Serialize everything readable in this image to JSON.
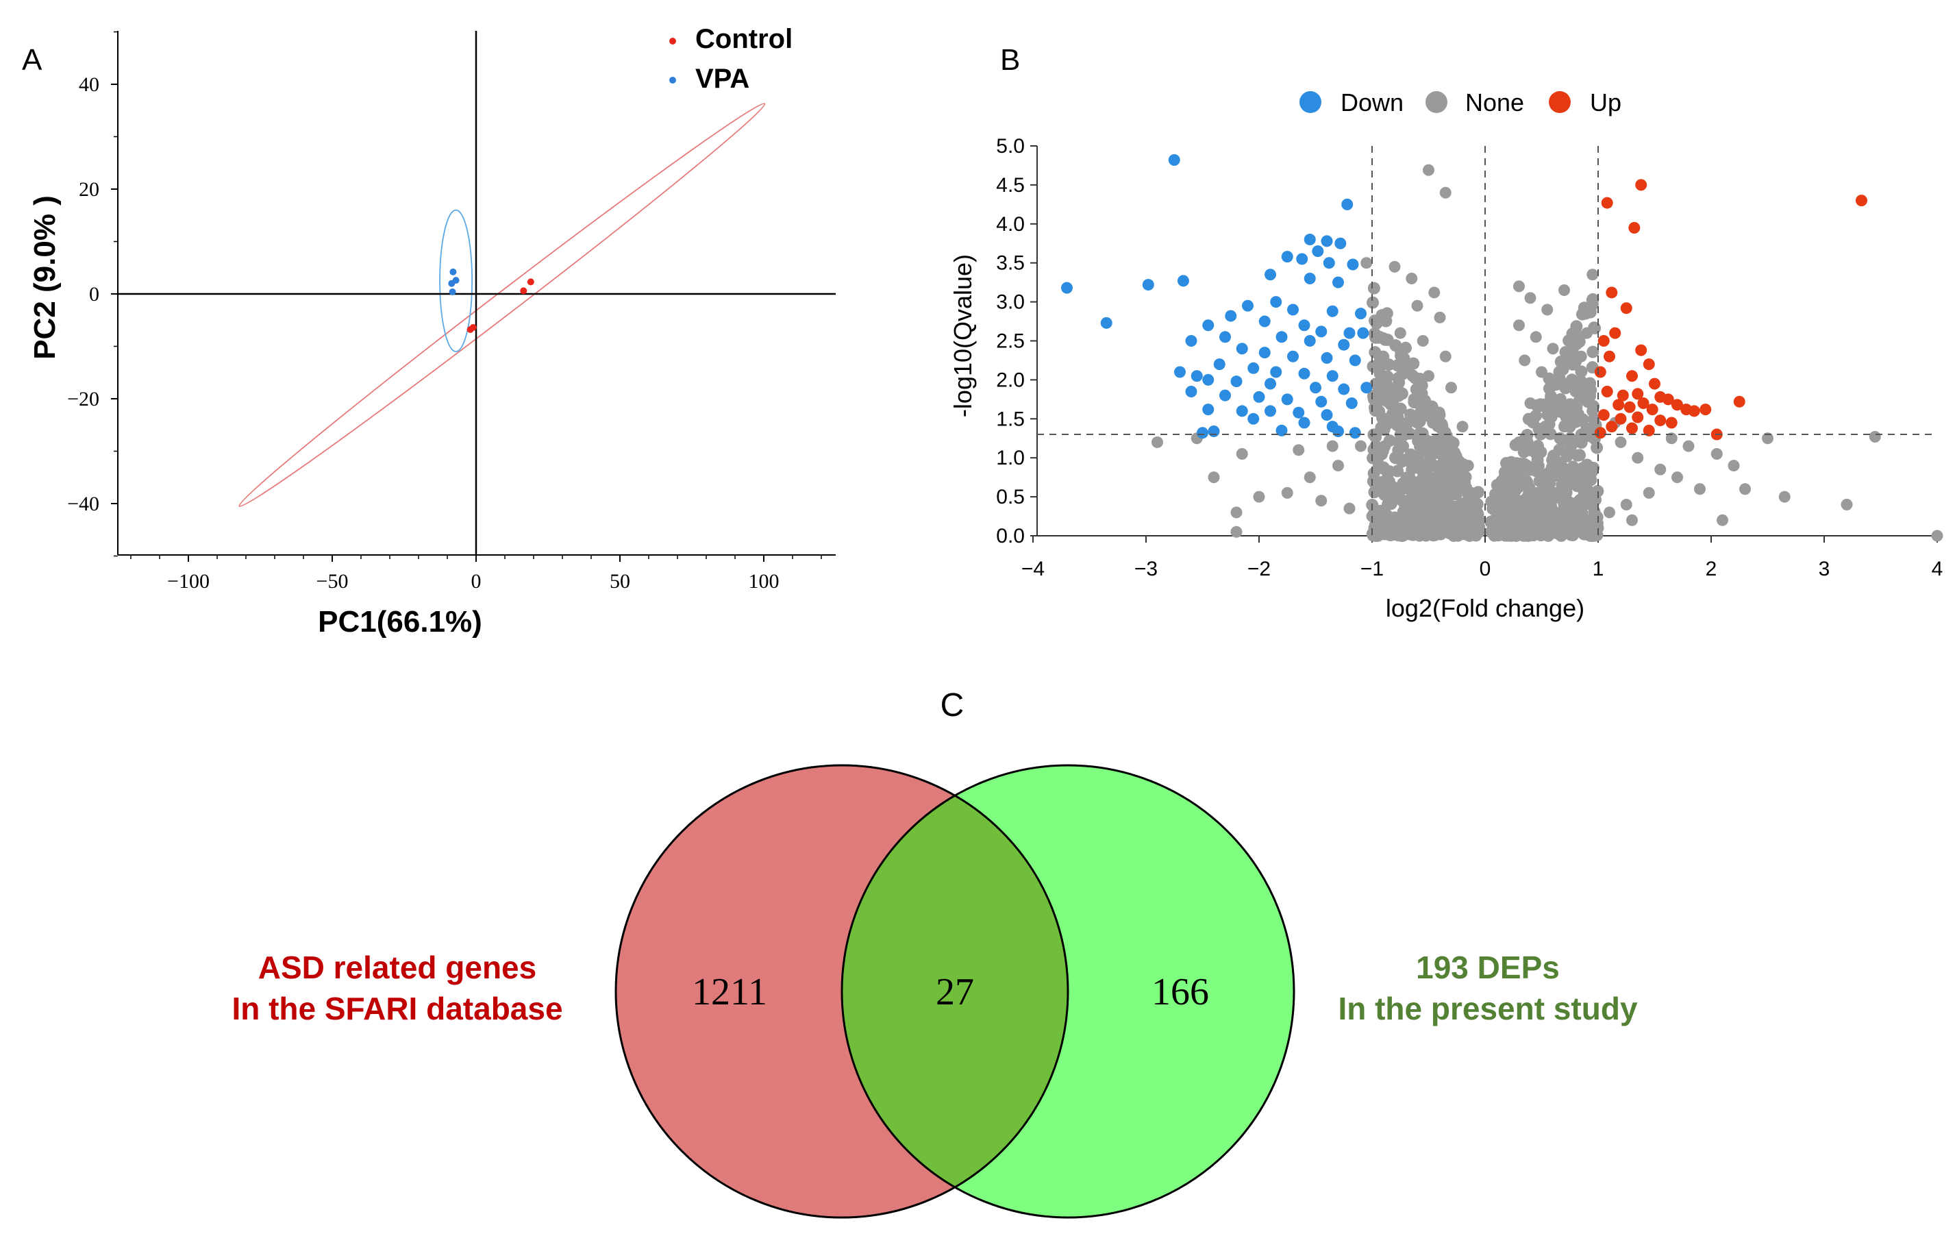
{
  "colors": {
    "control": "#e8251b",
    "vpa": "#2f7fd8",
    "down": "#2b8ce0",
    "none": "#9a9a9a",
    "up": "#e53a12",
    "venn_left": "#e07b7b",
    "venn_right": "#7fff7f",
    "venn_overlap": "#70be3c",
    "venn_left_label": "#c00000",
    "venn_right_label": "#548235"
  },
  "panels": {
    "a": "A",
    "b": "B",
    "c": "C"
  },
  "chart_data": [
    {
      "type": "scatter",
      "panel": "A",
      "title": "",
      "xlabel": "PC1(66.1%)",
      "ylabel": "PC2 (9.0% )",
      "xlim": [
        -125,
        125
      ],
      "ylim": [
        -50,
        50
      ],
      "xticks": [
        -100,
        -50,
        0,
        50,
        100
      ],
      "yticks": [
        -40,
        -20,
        0,
        20,
        40
      ],
      "xtick_labels": [
        "−100",
        "−50",
        "0",
        "50",
        "100"
      ],
      "ytick_labels": [
        "−40",
        "−20",
        "0",
        "20",
        "40"
      ],
      "legend": [
        "Control",
        "VPA"
      ],
      "legend_position": "top-right",
      "series": [
        {
          "name": "Control",
          "x": [
            16.5,
            19,
            -2,
            -1
          ],
          "y": [
            0.6,
            2.3,
            -6.8,
            -6.4
          ],
          "ellipse": {
            "cx": 9,
            "cy": -2.1,
            "rx": 107,
            "ry": 4.3,
            "angle_deg": 21.4
          }
        },
        {
          "name": "VPA",
          "x": [
            -8,
            -7,
            -8.2,
            -8.5
          ],
          "y": [
            4.2,
            2.6,
            0.4,
            2.0
          ],
          "ellipse": {
            "cx": -7,
            "cy": 2.5,
            "rx": 5.6,
            "ry": 13.5,
            "angle_deg": 0
          }
        }
      ]
    },
    {
      "type": "scatter",
      "panel": "B",
      "title": "",
      "xlabel": "log2(Fold change)",
      "ylabel": "-log10(Qvalue)",
      "xlim": [
        -4,
        4
      ],
      "ylim": [
        0,
        5
      ],
      "xticks": [
        -4,
        -3,
        -2,
        -1,
        0,
        1,
        2,
        3,
        4
      ],
      "yticks": [
        0,
        0.5,
        1,
        1.5,
        2,
        2.5,
        3,
        3.5,
        4,
        4.5,
        5
      ],
      "xtick_labels": [
        "−4",
        "−3",
        "−2",
        "−1",
        "0",
        "1",
        "2",
        "3",
        "4"
      ],
      "ytick_labels": [
        "0.0",
        "0.5",
        "1.0",
        "1.5",
        "2.0",
        "2.5",
        "3.0",
        "3.5",
        "4.0",
        "4.5",
        "5.0"
      ],
      "thresholds": {
        "x": [
          -1,
          0,
          1
        ],
        "y": 1.3
      },
      "legend": [
        "Down",
        "None",
        "Up"
      ],
      "legend_position": "top",
      "series": [
        {
          "name": "Down",
          "points": [
            [
              -2.75,
              4.82
            ],
            [
              -3.7,
              3.18
            ],
            [
              -3.35,
              2.73
            ],
            [
              -2.98,
              3.22
            ],
            [
              -2.67,
              3.27
            ],
            [
              -1.22,
              4.25
            ],
            [
              -1.55,
              3.8
            ],
            [
              -1.4,
              3.78
            ],
            [
              -1.28,
              3.75
            ],
            [
              -1.48,
              3.65
            ],
            [
              -1.75,
              3.58
            ],
            [
              -1.62,
              3.55
            ],
            [
              -1.38,
              3.5
            ],
            [
              -1.17,
              3.48
            ],
            [
              -1.9,
              3.35
            ],
            [
              -1.55,
              3.3
            ],
            [
              -1.3,
              3.25
            ],
            [
              -1.85,
              3.0
            ],
            [
              -2.1,
              2.95
            ],
            [
              -1.7,
              2.9
            ],
            [
              -1.35,
              2.88
            ],
            [
              -1.1,
              2.85
            ],
            [
              -2.25,
              2.82
            ],
            [
              -1.95,
              2.75
            ],
            [
              -1.6,
              2.7
            ],
            [
              -1.45,
              2.62
            ],
            [
              -1.2,
              2.6
            ],
            [
              -2.45,
              2.7
            ],
            [
              -2.6,
              2.5
            ],
            [
              -2.3,
              2.55
            ],
            [
              -1.8,
              2.55
            ],
            [
              -1.55,
              2.5
            ],
            [
              -1.25,
              2.45
            ],
            [
              -2.15,
              2.4
            ],
            [
              -1.95,
              2.35
            ],
            [
              -1.7,
              2.3
            ],
            [
              -1.4,
              2.28
            ],
            [
              -1.15,
              2.25
            ],
            [
              -2.35,
              2.2
            ],
            [
              -2.05,
              2.15
            ],
            [
              -1.85,
              2.1
            ],
            [
              -1.6,
              2.08
            ],
            [
              -1.35,
              2.05
            ],
            [
              -2.55,
              2.05
            ],
            [
              -2.7,
              2.1
            ],
            [
              -2.45,
              2.0
            ],
            [
              -2.2,
              1.98
            ],
            [
              -1.9,
              1.95
            ],
            [
              -1.5,
              1.9
            ],
            [
              -1.25,
              1.88
            ],
            [
              -2.6,
              1.85
            ],
            [
              -2.3,
              1.8
            ],
            [
              -2.0,
              1.78
            ],
            [
              -1.75,
              1.75
            ],
            [
              -1.45,
              1.72
            ],
            [
              -1.18,
              1.7
            ],
            [
              -2.45,
              1.62
            ],
            [
              -2.15,
              1.6
            ],
            [
              -1.9,
              1.6
            ],
            [
              -1.65,
              1.58
            ],
            [
              -1.4,
              1.55
            ],
            [
              -2.05,
              1.5
            ],
            [
              -1.6,
              1.45
            ],
            [
              -1.35,
              1.4
            ],
            [
              -2.5,
              1.32
            ],
            [
              -2.4,
              1.34
            ],
            [
              -1.8,
              1.35
            ],
            [
              -1.3,
              1.34
            ],
            [
              -1.15,
              1.32
            ],
            [
              -1.05,
              1.9
            ],
            [
              -1.08,
              2.6
            ]
          ]
        },
        {
          "name": "None",
          "points": [
            [
              -0.5,
              4.69
            ],
            [
              -0.35,
              4.4
            ],
            [
              -1.05,
              3.5
            ],
            [
              -0.8,
              3.45
            ],
            [
              -0.65,
              3.3
            ],
            [
              -0.45,
              3.12
            ],
            [
              -0.6,
              2.95
            ],
            [
              -0.4,
              2.8
            ],
            [
              -0.75,
              2.6
            ],
            [
              -0.55,
              2.5
            ],
            [
              -0.35,
              2.3
            ],
            [
              -0.7,
              2.2
            ],
            [
              -0.5,
              2.05
            ],
            [
              -0.3,
              1.9
            ],
            [
              -0.85,
              1.8
            ],
            [
              -0.6,
              1.7
            ],
            [
              -0.4,
              1.55
            ],
            [
              -0.2,
              1.4
            ],
            [
              -0.75,
              1.3
            ],
            [
              -0.5,
              1.2
            ],
            [
              -0.3,
              1.05
            ],
            [
              -0.15,
              0.9
            ],
            [
              -0.65,
              0.85
            ],
            [
              -0.45,
              0.7
            ],
            [
              -0.25,
              0.55
            ],
            [
              -0.1,
              0.4
            ],
            [
              -0.55,
              0.35
            ],
            [
              -0.35,
              0.2
            ],
            [
              -0.15,
              0.1
            ],
            [
              -0.05,
              0.05
            ],
            [
              -0.9,
              0.6
            ],
            [
              -1.3,
              0.9
            ],
            [
              -1.55,
              0.75
            ],
            [
              -1.75,
              0.55
            ],
            [
              -2.0,
              0.5
            ],
            [
              -2.2,
              0.3
            ],
            [
              -1.45,
              0.45
            ],
            [
              -1.2,
              0.35
            ],
            [
              -1.0,
              0.25
            ],
            [
              -2.4,
              0.75
            ],
            [
              -2.15,
              1.05
            ],
            [
              -1.65,
              1.1
            ],
            [
              -1.35,
              1.15
            ],
            [
              -2.9,
              1.2
            ],
            [
              -2.55,
              1.25
            ],
            [
              -2.2,
              0.05
            ],
            [
              -1.1,
              1.15
            ],
            [
              -0.95,
              0.95
            ],
            [
              0.3,
              3.2
            ],
            [
              0.4,
              3.05
            ],
            [
              0.55,
              2.9
            ],
            [
              0.3,
              2.7
            ],
            [
              0.45,
              2.55
            ],
            [
              0.6,
              2.4
            ],
            [
              0.35,
              2.25
            ],
            [
              0.5,
              2.1
            ],
            [
              0.65,
              1.95
            ],
            [
              0.8,
              1.85
            ],
            [
              0.4,
              1.7
            ],
            [
              0.55,
              1.55
            ],
            [
              0.7,
              1.4
            ],
            [
              0.85,
              1.3
            ],
            [
              0.3,
              1.2
            ],
            [
              0.45,
              1.05
            ],
            [
              0.6,
              0.9
            ],
            [
              0.75,
              0.75
            ],
            [
              0.2,
              0.6
            ],
            [
              0.35,
              0.45
            ],
            [
              0.5,
              0.3
            ],
            [
              0.15,
              0.15
            ],
            [
              0.05,
              0.05
            ],
            [
              0.9,
              2.6
            ],
            [
              0.95,
              3.35
            ],
            [
              0.7,
              3.15
            ],
            [
              0.85,
              2.3
            ],
            [
              1.2,
              1.2
            ],
            [
              1.35,
              1.0
            ],
            [
              1.55,
              0.85
            ],
            [
              1.7,
              0.75
            ],
            [
              1.9,
              0.6
            ],
            [
              2.05,
              1.05
            ],
            [
              2.2,
              0.9
            ],
            [
              1.45,
              0.55
            ],
            [
              1.25,
              0.4
            ],
            [
              1.1,
              0.3
            ],
            [
              1.65,
              1.25
            ],
            [
              1.8,
              1.15
            ],
            [
              2.1,
              0.2
            ],
            [
              2.65,
              0.5
            ],
            [
              3.2,
              0.4
            ],
            [
              3.45,
              1.27
            ],
            [
              2.5,
              1.25
            ],
            [
              2.3,
              0.6
            ],
            [
              1.0,
              0.1
            ],
            [
              1.3,
              0.2
            ],
            [
              4.0,
              0.0
            ],
            [
              0.95,
              1.6
            ],
            [
              1.15,
              1.45
            ]
          ]
        },
        {
          "name": "Up",
          "points": [
            [
              3.33,
              4.3
            ],
            [
              1.38,
              4.5
            ],
            [
              1.08,
              4.27
            ],
            [
              1.32,
              3.95
            ],
            [
              1.12,
              3.12
            ],
            [
              1.25,
              2.92
            ],
            [
              1.15,
              2.6
            ],
            [
              1.05,
              2.5
            ],
            [
              1.38,
              2.38
            ],
            [
              1.45,
              2.2
            ],
            [
              1.1,
              2.3
            ],
            [
              1.02,
              2.1
            ],
            [
              1.3,
              2.05
            ],
            [
              1.5,
              1.95
            ],
            [
              1.08,
              1.85
            ],
            [
              1.22,
              1.8
            ],
            [
              1.35,
              1.82
            ],
            [
              1.55,
              1.78
            ],
            [
              1.62,
              1.75
            ],
            [
              1.4,
              1.7
            ],
            [
              1.18,
              1.68
            ],
            [
              1.28,
              1.65
            ],
            [
              1.48,
              1.62
            ],
            [
              1.7,
              1.68
            ],
            [
              1.78,
              1.62
            ],
            [
              1.85,
              1.6
            ],
            [
              1.05,
              1.55
            ],
            [
              1.2,
              1.5
            ],
            [
              1.35,
              1.52
            ],
            [
              1.55,
              1.48
            ],
            [
              1.65,
              1.45
            ],
            [
              1.12,
              1.4
            ],
            [
              1.3,
              1.38
            ],
            [
              1.45,
              1.35
            ],
            [
              2.25,
              1.72
            ],
            [
              1.95,
              1.62
            ],
            [
              2.05,
              1.3
            ],
            [
              1.02,
              1.32
            ]
          ]
        }
      ]
    },
    {
      "type": "venn",
      "panel": "C",
      "sets": [
        {
          "name": "ASD related genes In the SFARI database",
          "only": 1211
        },
        {
          "name": "193 DEPs In the present study",
          "only": 166
        }
      ],
      "intersection": 27
    }
  ],
  "panel_a": {
    "legend_items": [
      "Control",
      "VPA"
    ],
    "xlabel": "PC1(66.1%)",
    "ylabel": "PC2 (9.0% )"
  },
  "panel_b": {
    "legend_items": [
      "Down",
      "None",
      "Up"
    ],
    "xlabel": "log2(Fold change)",
    "ylabel": "-log10(Qvalue)"
  },
  "panel_c": {
    "left_count": "1211",
    "overlap_count": "27",
    "right_count": "166",
    "left_label_line1": "ASD related genes",
    "left_label_line2": "In the SFARI database",
    "right_label_line1": "193 DEPs",
    "right_label_line2": "In the present study"
  }
}
